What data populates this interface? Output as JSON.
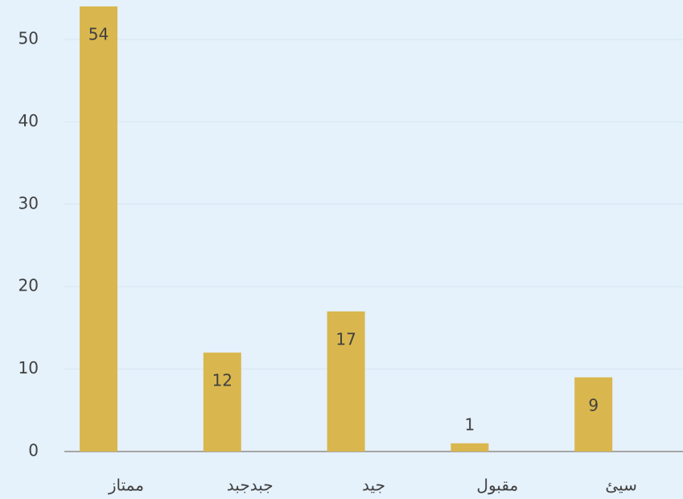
{
  "chart_data": {
    "type": "bar",
    "categories": [
      "ممتاز",
      "جبدجبد",
      "جيد",
      "مقبول",
      "سيئ"
    ],
    "values": [
      54,
      12,
      17,
      1,
      9
    ],
    "color": "#d9b74e",
    "ylim": [
      0,
      54
    ],
    "yticks": [
      0,
      10,
      20,
      30,
      40,
      50
    ],
    "grid": true
  }
}
